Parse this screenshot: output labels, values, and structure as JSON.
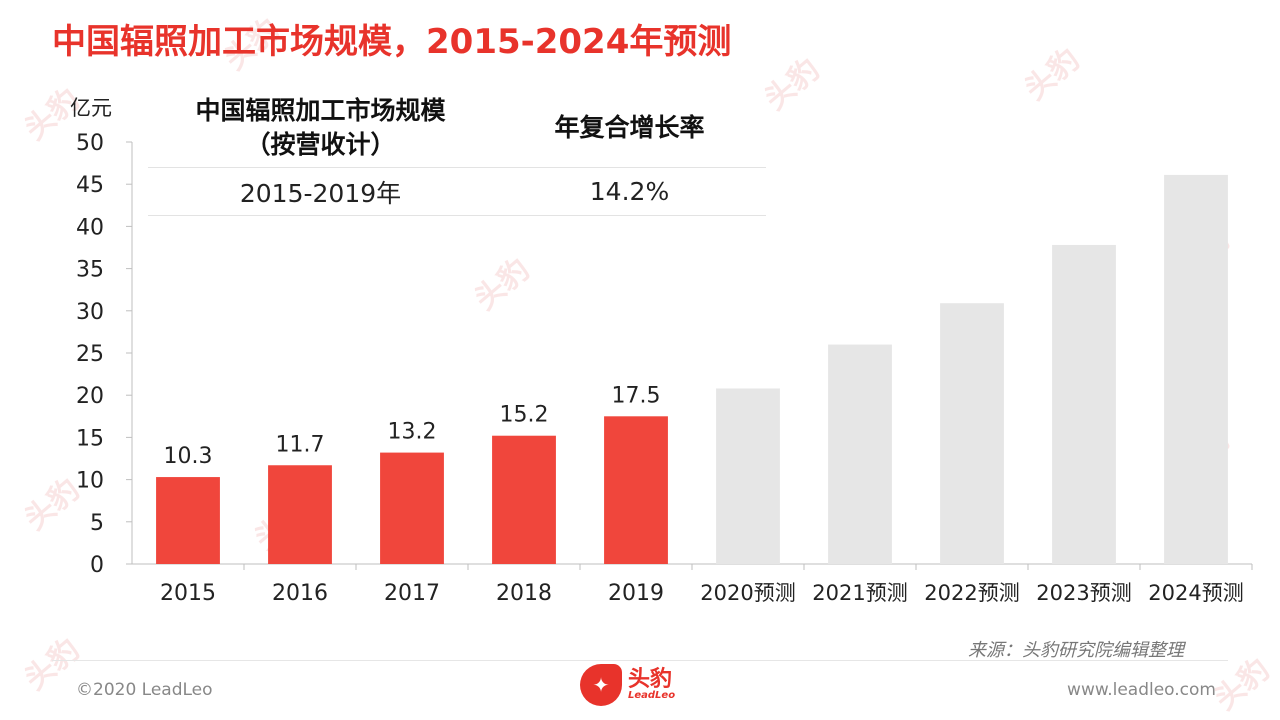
{
  "title": "中国辐照加工市场规模，2015-2024年预测",
  "unit_label": "亿元",
  "cagr_table": {
    "header_col1": "中国辐照加工市场规模\n（按营收计）",
    "header_col2": "年复合增长率",
    "row_period": "2015-2019年",
    "row_value": "14.2%"
  },
  "chart_data": {
    "type": "bar",
    "categories": [
      "2015",
      "2016",
      "2017",
      "2018",
      "2019",
      "2020预测",
      "2021预测",
      "2022预测",
      "2023预测",
      "2024预测"
    ],
    "values": [
      10.3,
      11.7,
      13.2,
      15.2,
      17.5,
      20.8,
      26.0,
      30.9,
      37.8,
      46.1
    ],
    "data_labels": [
      "10.3",
      "11.7",
      "13.2",
      "15.2",
      "17.5",
      "",
      "",
      "",
      "",
      ""
    ],
    "ylim": [
      0,
      50
    ],
    "yticks": [
      0,
      5,
      10,
      15,
      20,
      25,
      30,
      35,
      40,
      45,
      50
    ],
    "ylabel": "亿元",
    "colors": {
      "actual": "#f0463c",
      "forecast": "#e6e6e6"
    },
    "legend": "none",
    "grid": false
  },
  "source_text": "来源：头豹研究院编辑整理",
  "footer": {
    "copyright": "©2020 LeadLeo",
    "website": "www.leadleo.com",
    "logo_cn": "头豹",
    "logo_en": "LeadLeo"
  }
}
